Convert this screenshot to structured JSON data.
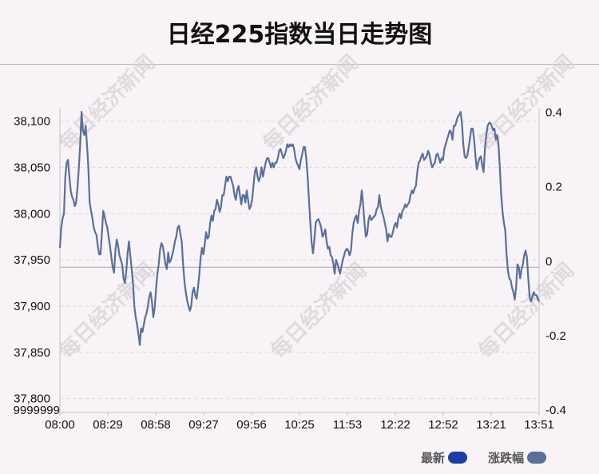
{
  "chart_data": {
    "type": "line",
    "title": "日经225指数当日走势图",
    "x_ticks": [
      "08:00",
      "08:29",
      "08:58",
      "09:27",
      "09:56",
      "10:25",
      "11:53",
      "12:22",
      "12:52",
      "13:21",
      "13:51"
    ],
    "y_left": {
      "ticks": [
        "37,800",
        "37,850",
        "37,900",
        "37,950",
        "38,000",
        "38,050",
        "38,100"
      ],
      "floor_label": "9999999",
      "range": [
        37785,
        38110
      ]
    },
    "y_right": {
      "ticks": [
        "0.4",
        "0.2",
        "0",
        "-0.2",
        "-0.4"
      ],
      "range": [
        -0.406,
        0.401
      ]
    },
    "baseline_value": 37942,
    "series": [
      {
        "name": "最新",
        "color": "#1a3fa0",
        "values": [
          37963,
          37985,
          37995,
          38000,
          38040,
          38055,
          38058,
          38040,
          38025,
          38018,
          38015,
          38008,
          38012,
          38028,
          38050,
          38075,
          38110,
          38090,
          38085,
          38095,
          38075,
          38050,
          38012,
          38003,
          37995,
          37985,
          37980,
          37977,
          37965,
          37956,
          37956,
          37978,
          38003,
          37997,
          37990,
          37985,
          37975,
          37965,
          37953,
          37942,
          37936,
          37960,
          37972,
          37965,
          37955,
          37950,
          37945,
          37930,
          37925,
          37937,
          37957,
          37970,
          37955,
          37940,
          37925,
          37900,
          37888,
          37880,
          37870,
          37858,
          37876,
          37872,
          37880,
          37888,
          37892,
          37900,
          37910,
          37915,
          37905,
          37888,
          37898,
          37918,
          37935,
          37945,
          37961,
          37968,
          37965,
          37955,
          37945,
          37940,
          37958,
          37947,
          37950,
          37955,
          37962,
          37970,
          37975,
          37985,
          37987,
          37978,
          37970,
          37945,
          37927,
          37915,
          37906,
          37900,
          37895,
          37900,
          37915,
          37920,
          37912,
          37908,
          37920,
          37935,
          37953,
          37963,
          37956,
          37967,
          37980,
          37973,
          37975,
          37990,
          37998,
          37992,
          38003,
          38005,
          38015,
          38010,
          38002,
          38007,
          38020,
          38020,
          38030,
          38040,
          38035,
          38040,
          38040,
          38035,
          38030,
          38020,
          38015,
          38025,
          38030,
          38020,
          38010,
          38020,
          38020,
          38012,
          38025,
          38015,
          38005,
          38008,
          38015,
          38030,
          38045,
          38050,
          38040,
          38035,
          38040,
          38050,
          38040,
          38048,
          38055,
          38060,
          38060,
          38055,
          38050,
          38055,
          38050,
          38055,
          38055,
          38060,
          38068,
          38070,
          38065,
          38060,
          38063,
          38068,
          38075,
          38072,
          38075,
          38073,
          38075,
          38070,
          38060,
          38055,
          38052,
          38048,
          38058,
          38064,
          38072,
          38072,
          38060,
          38040,
          38015,
          37990,
          37968,
          37957,
          37972,
          37990,
          37993,
          37994,
          37990,
          37985,
          37975,
          37978,
          37983,
          37970,
          37962,
          37964,
          37955,
          37953,
          37946,
          37935,
          37950,
          37946,
          37940,
          37935,
          37943,
          37950,
          37955,
          37960,
          37962,
          37960,
          37955,
          37960,
          37978,
          37990,
          37995,
          37998,
          37990,
          38003,
          38010,
          38025,
          38010,
          37990,
          37975,
          37978,
          37993,
          37998,
          37993,
          37995,
          37997,
          37998,
          38005,
          38007,
          38020,
          38008,
          38002,
          37997,
          37990,
          37983,
          37970,
          37978,
          37975,
          37975,
          37980,
          37987,
          37990,
          37985,
          37995,
          38000,
          37995,
          38003,
          38005,
          38010,
          38007,
          38010,
          38012,
          38020,
          38025,
          38022,
          38027,
          38030,
          38045,
          38055,
          38057,
          38062,
          38065,
          38058,
          38060,
          38062,
          38068,
          38064,
          38056,
          38050,
          38053,
          38055,
          38063,
          38065,
          38060,
          38055,
          38060,
          38058,
          38070,
          38075,
          38080,
          38085,
          38090,
          38088,
          38080,
          38095,
          38095,
          38100,
          38105,
          38107,
          38110,
          38098,
          38075,
          38062,
          38060,
          38063,
          38072,
          38082,
          38092,
          38092,
          38080,
          38062,
          38048,
          38055,
          38060,
          38062,
          38052,
          38045,
          38070,
          38085,
          38095,
          38098,
          38098,
          38095,
          38090,
          38092,
          38080,
          38085,
          38075,
          38050,
          38020,
          38002,
          37990,
          37982,
          37955,
          37938,
          37930,
          37928,
          37920,
          37915,
          37907,
          37920,
          37945,
          37942,
          37930,
          37940,
          37945,
          37955,
          37960,
          37953,
          37930,
          37910,
          37905,
          37910,
          37915,
          37912,
          37912,
          37908,
          37905
        ]
      },
      {
        "name": "涨跌幅",
        "color": "#5a6f99"
      }
    ],
    "legend_position": "bottom-right",
    "grid": true
  },
  "watermark": {
    "text": "每日经济新闻"
  }
}
